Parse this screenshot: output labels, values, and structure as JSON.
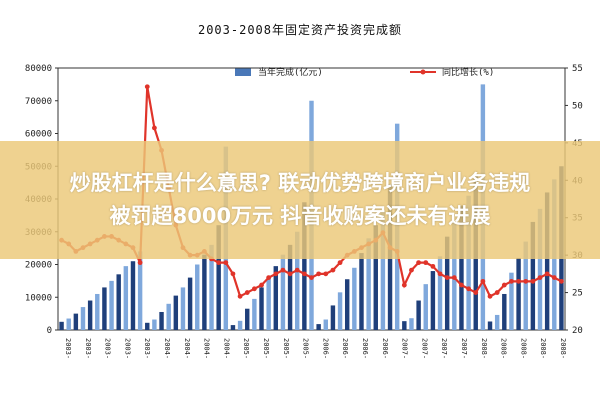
{
  "chart_data": {
    "type": "bar",
    "title": "2003-2008年固定资产投资完成额",
    "legend": [
      {
        "label": "当年完成(亿元)",
        "kind": "bar",
        "color": "#4a78b8"
      },
      {
        "label": "同比增长(%)",
        "kind": "line",
        "color": "#e0342a"
      }
    ],
    "y_left": {
      "ylim": [
        0,
        80000
      ],
      "ticks": [
        "0",
        "10000",
        "20000",
        "30000",
        "40000",
        "50000",
        "60000",
        "70000",
        "80000"
      ]
    },
    "y_right": {
      "ylim": [
        20,
        55
      ],
      "ticks": [
        "20",
        "25",
        "30",
        "35",
        "40",
        "45",
        "50",
        "55"
      ]
    },
    "categories": [
      "2003-",
      "",
      "",
      "",
      "",
      "",
      "",
      "",
      "",
      "",
      "",
      "",
      "2004-",
      "",
      "",
      "",
      "",
      "",
      "",
      "",
      "",
      "",
      "",
      "",
      "2005-",
      "",
      "",
      "",
      "",
      "",
      "",
      "",
      "",
      "",
      "",
      "",
      "2006-",
      "",
      "",
      "",
      "",
      "",
      "",
      "",
      "",
      "",
      "",
      "",
      "2007-",
      "",
      "",
      "",
      "",
      "",
      "",
      "",
      "",
      "",
      "",
      "",
      "2008-",
      "",
      "",
      "",
      "",
      "",
      "",
      "",
      "",
      "",
      ""
    ],
    "xtick_labels": [
      "2003-",
      "2003-",
      "2003-",
      "2003-",
      "2003-",
      "2004-",
      "2004-",
      "2004-",
      "2004-",
      "2005-",
      "2005-",
      "2005-",
      "2005-",
      "2006-",
      "2006-",
      "2006-",
      "2006-",
      "2007-",
      "2007-",
      "2007-",
      "2007-",
      "2008-",
      "2008-",
      "2008-",
      "2008-",
      "2008-"
    ],
    "series": [
      {
        "name": "当年完成(亿元)",
        "values": [
          2500,
          3500,
          5000,
          7000,
          9000,
          11000,
          13000,
          15000,
          17000,
          19500,
          21000,
          24000,
          2200,
          3200,
          5500,
          8000,
          10500,
          13000,
          16000,
          20000,
          23000,
          26000,
          32000,
          56000,
          1500,
          2800,
          6500,
          9500,
          13000,
          16000,
          19500,
          23000,
          26000,
          30000,
          39000,
          70000,
          1800,
          3200,
          7500,
          11500,
          15500,
          19000,
          23500,
          28000,
          32000,
          36500,
          44500,
          63000,
          2700,
          3600,
          9000,
          14000,
          18000,
          22500,
          28500,
          33000,
          38000,
          41000,
          47000,
          75000,
          2600,
          4600,
          11000,
          17500,
          22000,
          27000,
          33000,
          37000,
          42000,
          46000,
          50000
        ]
      },
      {
        "name": "同比增长(%)",
        "values": [
          32,
          31.5,
          30.5,
          31,
          31.5,
          32,
          32.5,
          32.5,
          32,
          31.5,
          31,
          29,
          52.5,
          47,
          44,
          39,
          34,
          31,
          30,
          30,
          30.5,
          29.5,
          29,
          29,
          27.5,
          24.5,
          25,
          25.5,
          26,
          27,
          27.5,
          28,
          27.5,
          28,
          27.5,
          27,
          27.5,
          27.5,
          28,
          29,
          30,
          30.5,
          31,
          31.5,
          32,
          33,
          31,
          30.5,
          26,
          28,
          29,
          29,
          28.5,
          27.5,
          27,
          27,
          26,
          25.5,
          25,
          26.5,
          24.5,
          25,
          26,
          26.5,
          26.5,
          26.5,
          26.5,
          27,
          27.5,
          27,
          26.5
        ]
      }
    ]
  },
  "banner": {
    "line1": "炒股杠杆是什么意思? 联动优势跨境商户业务违规",
    "line2": "被罚超8000万元 抖音收购案还未有进展"
  }
}
